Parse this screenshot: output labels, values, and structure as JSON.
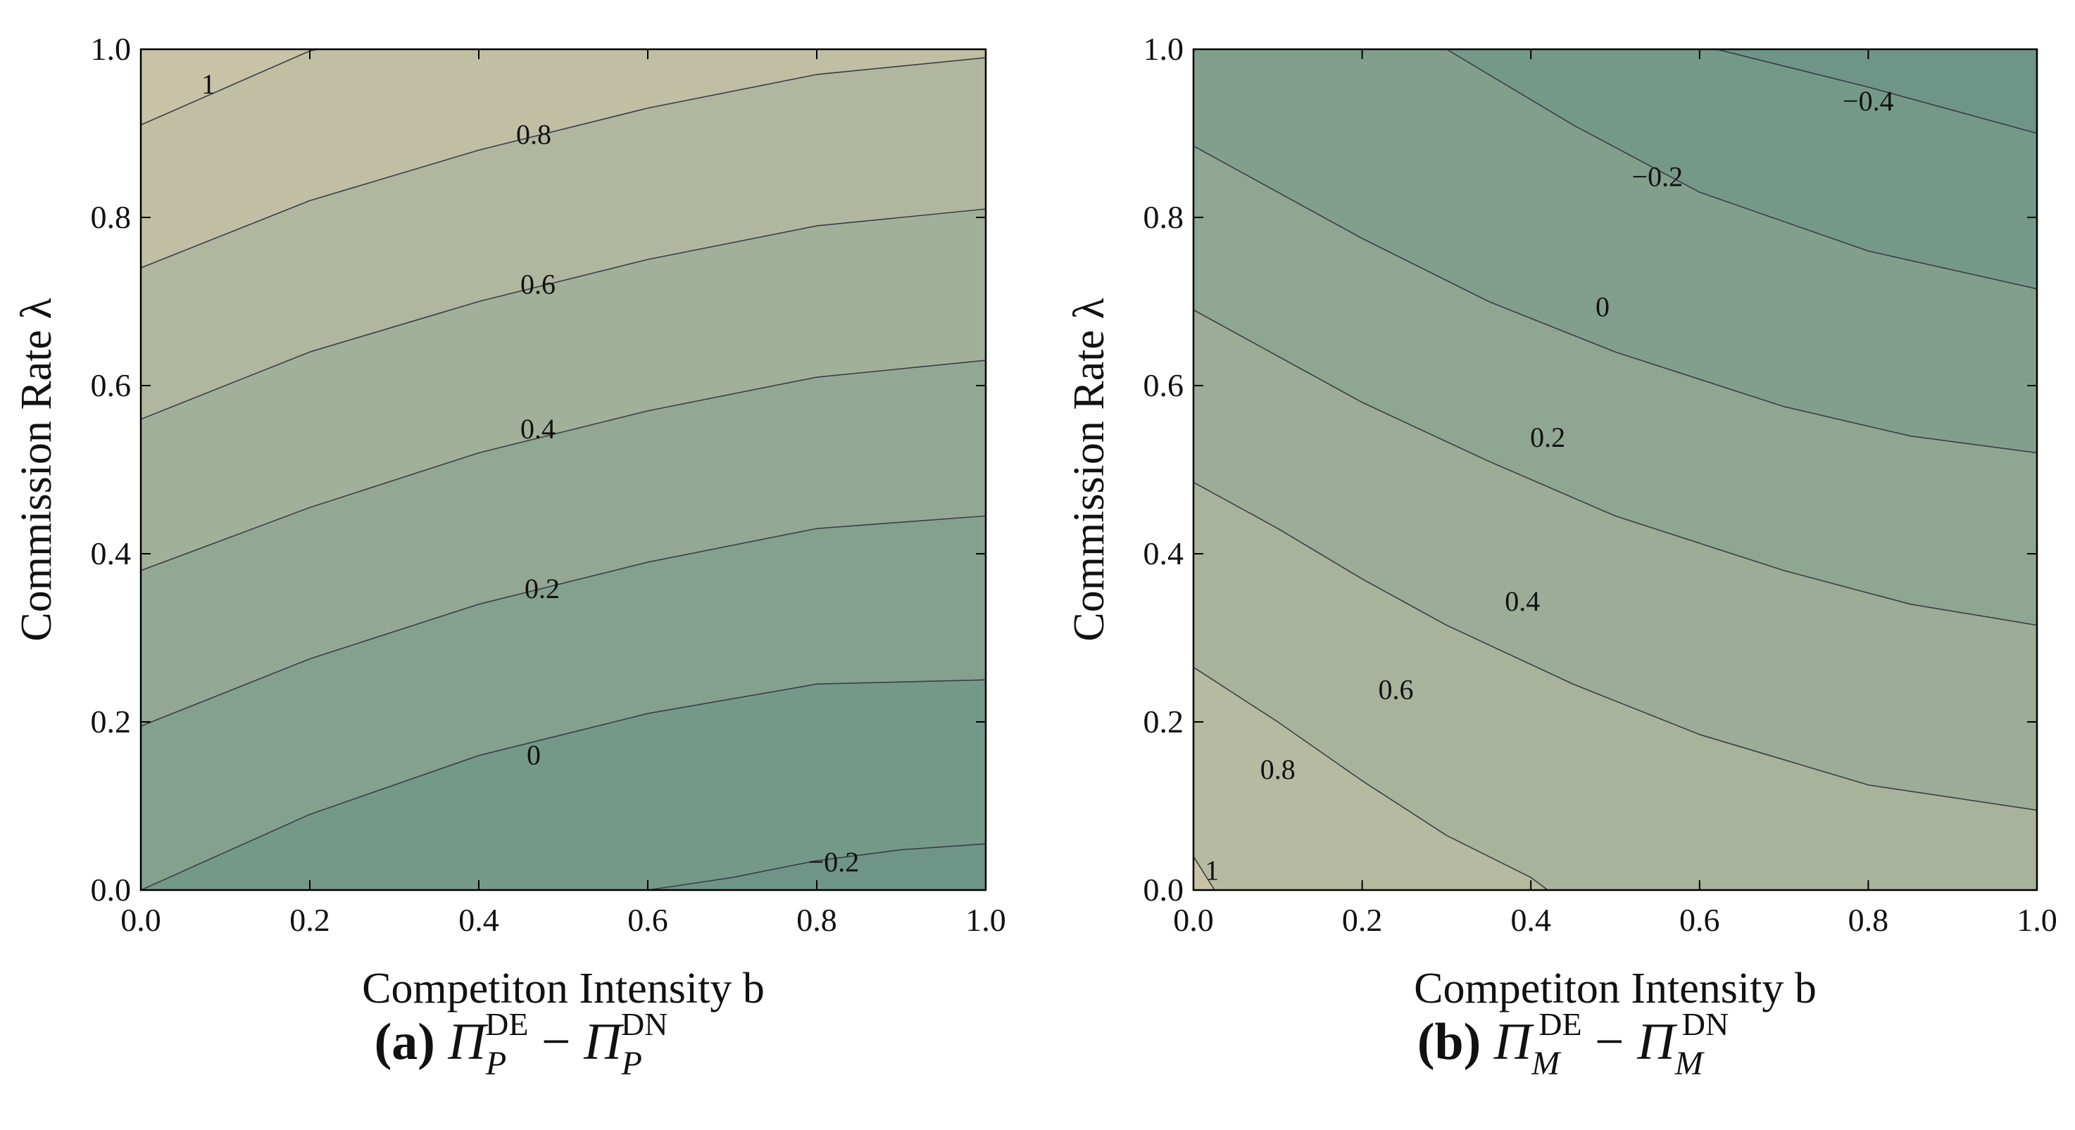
{
  "chart_data": [
    {
      "type": "contour",
      "caption_tag": "(a)",
      "caption_symbol": "Π",
      "caption_sub": "P",
      "caption_sup1": "DE",
      "caption_sup2": "DN",
      "caption_minus": "−",
      "xlabel": "Competiton Intensity b",
      "ylabel": "Commission Rate λ",
      "xlim": [
        0,
        1
      ],
      "ylim": [
        0,
        1
      ],
      "xticks": [
        "0.0",
        "0.2",
        "0.4",
        "0.6",
        "0.8",
        "1.0"
      ],
      "yticks": [
        "0.0",
        "0.2",
        "0.4",
        "0.6",
        "0.8",
        "1.0"
      ],
      "color_low": "#6e9587",
      "color_high": "#c8c3a6",
      "contour_levels": [
        -0.2,
        0,
        0.2,
        0.4,
        0.6,
        0.8,
        1
      ],
      "contour_labels": [
        {
          "text": "1",
          "b": 0.08,
          "lambda": 0.955
        },
        {
          "text": "0.8",
          "b": 0.465,
          "lambda": 0.895
        },
        {
          "text": "0.6",
          "b": 0.47,
          "lambda": 0.717
        },
        {
          "text": "0.4",
          "b": 0.47,
          "lambda": 0.545
        },
        {
          "text": "0.2",
          "b": 0.475,
          "lambda": 0.355
        },
        {
          "text": "0",
          "b": 0.465,
          "lambda": 0.157
        },
        {
          "text": "−0.2",
          "b": 0.82,
          "lambda": 0.03
        }
      ],
      "contour_lines": [
        {
          "level": 1,
          "points": [
            [
              0,
              0.91
            ],
            [
              0.2,
              0.998
            ],
            [
              0.21,
              1.0
            ]
          ]
        },
        {
          "level": 0.8,
          "points": [
            [
              0,
              0.74
            ],
            [
              0.2,
              0.82
            ],
            [
              0.4,
              0.88
            ],
            [
              0.6,
              0.93
            ],
            [
              0.8,
              0.97
            ],
            [
              1.0,
              0.99
            ]
          ]
        },
        {
          "level": 0.6,
          "points": [
            [
              0,
              0.56
            ],
            [
              0.2,
              0.64
            ],
            [
              0.4,
              0.7
            ],
            [
              0.6,
              0.75
            ],
            [
              0.8,
              0.79
            ],
            [
              1.0,
              0.81
            ]
          ]
        },
        {
          "level": 0.4,
          "points": [
            [
              0,
              0.38
            ],
            [
              0.2,
              0.455
            ],
            [
              0.4,
              0.52
            ],
            [
              0.6,
              0.57
            ],
            [
              0.8,
              0.61
            ],
            [
              1.0,
              0.63
            ]
          ]
        },
        {
          "level": 0.2,
          "points": [
            [
              0,
              0.195
            ],
            [
              0.2,
              0.275
            ],
            [
              0.4,
              0.34
            ],
            [
              0.6,
              0.39
            ],
            [
              0.8,
              0.43
            ],
            [
              1.0,
              0.445
            ]
          ]
        },
        {
          "level": 0,
          "points": [
            [
              0,
              0.0
            ],
            [
              0.2,
              0.09
            ],
            [
              0.4,
              0.16
            ],
            [
              0.6,
              0.21
            ],
            [
              0.8,
              0.245
            ],
            [
              1.0,
              0.25
            ]
          ]
        },
        {
          "level": -0.2,
          "points": [
            [
              0.6,
              0.0
            ],
            [
              0.7,
              0.015
            ],
            [
              0.8,
              0.035
            ],
            [
              0.9,
              0.048
            ],
            [
              1.0,
              0.055
            ]
          ]
        }
      ]
    },
    {
      "type": "contour",
      "caption_tag": "(b)",
      "caption_symbol": "Π",
      "caption_sub": "M",
      "caption_sup1": "DE",
      "caption_sup2": "DN",
      "caption_minus": "−",
      "xlabel": "Competiton Intensity b",
      "ylabel": "Commission Rate λ",
      "xlim": [
        0,
        1
      ],
      "ylim": [
        0,
        1
      ],
      "xticks": [
        "0.0",
        "0.2",
        "0.4",
        "0.6",
        "0.8",
        "1.0"
      ],
      "yticks": [
        "0.0",
        "0.2",
        "0.4",
        "0.6",
        "0.8",
        "1.0"
      ],
      "color_low": "#6e9587",
      "color_high": "#c8c3a6",
      "contour_levels": [
        -0.4,
        -0.2,
        0,
        0.2,
        0.4,
        0.6,
        0.8,
        1
      ],
      "contour_labels": [
        {
          "text": "−0.4",
          "b": 0.8,
          "lambda": 0.935
        },
        {
          "text": "−0.2",
          "b": 0.55,
          "lambda": 0.845
        },
        {
          "text": "0",
          "b": 0.485,
          "lambda": 0.69
        },
        {
          "text": "0.2",
          "b": 0.42,
          "lambda": 0.535
        },
        {
          "text": "0.4",
          "b": 0.39,
          "lambda": 0.34
        },
        {
          "text": "0.6",
          "b": 0.24,
          "lambda": 0.235
        },
        {
          "text": "0.8",
          "b": 0.1,
          "lambda": 0.14
        },
        {
          "text": "1",
          "b": 0.022,
          "lambda": 0.02
        }
      ],
      "contour_lines": [
        {
          "level": -0.4,
          "points": [
            [
              0.62,
              1.0
            ],
            [
              0.8,
              0.955
            ],
            [
              1.0,
              0.9
            ]
          ]
        },
        {
          "level": -0.2,
          "points": [
            [
              0.3,
              1.0
            ],
            [
              0.45,
              0.91
            ],
            [
              0.6,
              0.83
            ],
            [
              0.8,
              0.76
            ],
            [
              1.0,
              0.715
            ]
          ]
        },
        {
          "level": 0,
          "points": [
            [
              0,
              0.885
            ],
            [
              0.1,
              0.83
            ],
            [
              0.2,
              0.775
            ],
            [
              0.35,
              0.7
            ],
            [
              0.5,
              0.64
            ],
            [
              0.7,
              0.575
            ],
            [
              0.85,
              0.54
            ],
            [
              1.0,
              0.52
            ]
          ]
        },
        {
          "level": 0.2,
          "points": [
            [
              0,
              0.69
            ],
            [
              0.1,
              0.635
            ],
            [
              0.2,
              0.58
            ],
            [
              0.35,
              0.51
            ],
            [
              0.5,
              0.445
            ],
            [
              0.7,
              0.38
            ],
            [
              0.85,
              0.34
            ],
            [
              1.0,
              0.315
            ]
          ]
        },
        {
          "level": 0.4,
          "points": [
            [
              0,
              0.485
            ],
            [
              0.1,
              0.43
            ],
            [
              0.2,
              0.37
            ],
            [
              0.3,
              0.315
            ],
            [
              0.45,
              0.245
            ],
            [
              0.6,
              0.185
            ],
            [
              0.8,
              0.125
            ],
            [
              1.0,
              0.095
            ]
          ]
        },
        {
          "level": 0.6,
          "points": [
            [
              0,
              0.265
            ],
            [
              0.1,
              0.2
            ],
            [
              0.2,
              0.13
            ],
            [
              0.3,
              0.065
            ],
            [
              0.4,
              0.015
            ],
            [
              0.42,
              0.0
            ]
          ]
        },
        {
          "level": 0.8,
          "points": [
            [
              0.0,
              0.0
            ],
            [
              0.0,
              0.0
            ]
          ]
        },
        {
          "level": 1,
          "points": [
            [
              0,
              0.04
            ],
            [
              0.025,
              0.0
            ]
          ]
        }
      ]
    }
  ]
}
